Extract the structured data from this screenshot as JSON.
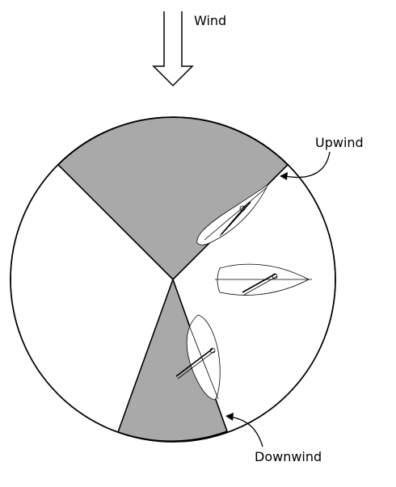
{
  "labels": {
    "wind": "Wind",
    "upwind": "Upwind",
    "downwind": "Downwind"
  },
  "colors": {
    "no_go_zone": "#a9a9a9",
    "outline": "#000000",
    "background": "#ffffff"
  }
}
